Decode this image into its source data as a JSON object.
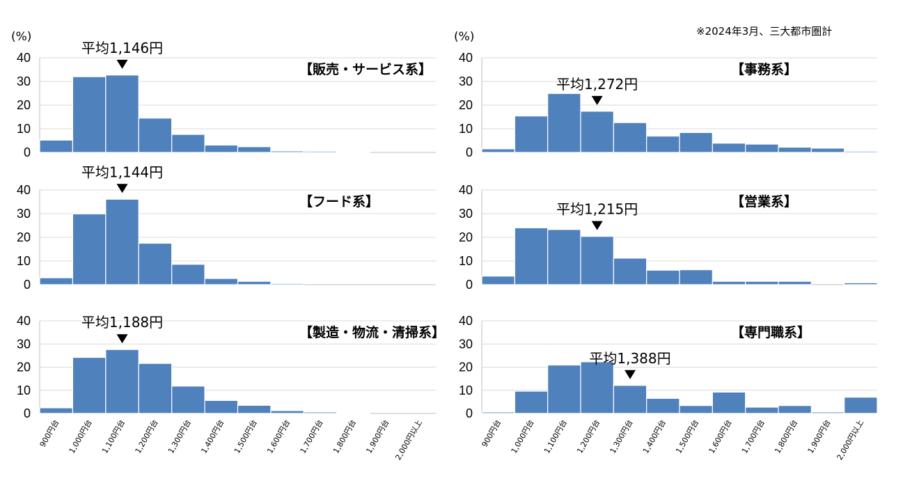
{
  "note": "※2024年3月、三大都市圏計",
  "unit_label": "(%)",
  "categories": [
    "900円台",
    "1,000円台",
    "1,100円台",
    "1,200円台",
    "1,300円台",
    "1,400円台",
    "1,500円台",
    "1,600円台",
    "1,700円台",
    "1,800円台",
    "1,900円台",
    "2,000円以上"
  ],
  "colors": {
    "bar": "#4f81bd",
    "grid": "#d9d9d9",
    "axis": "#bfbfbf"
  },
  "chart_data": [
    {
      "type": "bar",
      "title": "【販売・サービス系】",
      "avg_label": "平均1,146円",
      "avg_value": 1146,
      "y_ticks": [
        "0",
        "10",
        "20",
        "30",
        "40"
      ],
      "ylim": [
        0,
        40
      ],
      "values": [
        5.2,
        32,
        32.7,
        14.5,
        7.6,
        3.1,
        2.4,
        0.6,
        0.5,
        0.3,
        0,
        0
      ]
    },
    {
      "type": "bar",
      "title": "【事務系】",
      "avg_label": "平均1,272円",
      "avg_value": 1272,
      "y_ticks": [
        "0",
        "10",
        "20",
        "30",
        "40"
      ],
      "ylim": [
        0,
        40
      ],
      "values": [
        1.5,
        15.4,
        24.9,
        17.4,
        12.6,
        6.9,
        8.4,
        3.9,
        3.5,
        2.2,
        1.8,
        0.5
      ]
    },
    {
      "type": "bar",
      "title": "【フード系】",
      "avg_label": "平均1,144円",
      "avg_value": 1144,
      "y_ticks": [
        "0",
        "10",
        "20",
        "30",
        "40"
      ],
      "ylim": [
        0,
        40
      ],
      "values": [
        2.9,
        29.9,
        36.1,
        17.5,
        8.6,
        2.6,
        1.4,
        0.5,
        0,
        0,
        0,
        0
      ]
    },
    {
      "type": "bar",
      "title": "【営業系】",
      "avg_label": "平均1,215円",
      "avg_value": 1215,
      "y_ticks": [
        "0",
        "10",
        "20",
        "30",
        "40"
      ],
      "ylim": [
        0,
        40
      ],
      "values": [
        3.6,
        24,
        23.3,
        20.4,
        11.2,
        6.1,
        6.3,
        1.4,
        1.4,
        1.4,
        0,
        0.8
      ]
    },
    {
      "type": "bar",
      "title": "【製造・物流・清掃系】",
      "avg_label": "平均1,188円",
      "avg_value": 1188,
      "y_ticks": [
        "0",
        "10",
        "20",
        "30",
        "40"
      ],
      "ylim": [
        0,
        40
      ],
      "values": [
        2.4,
        24.2,
        27.6,
        21.6,
        11.8,
        5.6,
        3.5,
        1.2,
        0.6,
        0.2,
        0,
        0
      ]
    },
    {
      "type": "bar",
      "title": "【専門職系】",
      "avg_label": "平均1,388円",
      "avg_value": 1388,
      "y_ticks": [
        "0",
        "10",
        "20",
        "30",
        "40"
      ],
      "ylim": [
        0,
        40
      ],
      "values": [
        0.6,
        9.6,
        20.9,
        22.3,
        12.1,
        6.5,
        3.4,
        9.2,
        2.7,
        3.4,
        0.6,
        7
      ]
    }
  ]
}
